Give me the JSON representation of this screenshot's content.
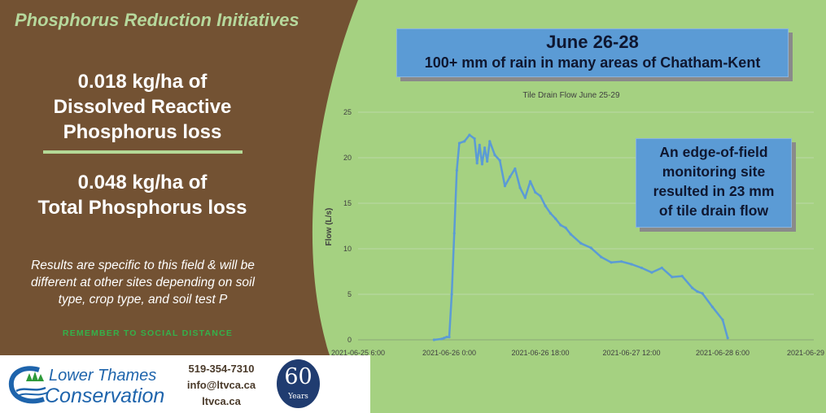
{
  "left_panel": {
    "title": "Phosphorus Reduction Initiatives",
    "stat_1": [
      "0.018 kg/ha of",
      "Dissolved Reactive",
      "Phosphorus loss"
    ],
    "stat_2": [
      "0.048 kg/ha of",
      "Total Phosphorus loss"
    ],
    "note": [
      "Results are specific to this field & will be",
      "different at other sites depending on soil",
      "type, crop type, and soil test P"
    ],
    "remember": "REMEMBER TO SOCIAL DISTANCE"
  },
  "footer": {
    "logo_top": "Lower Thames",
    "logo_bottom": "Conservation",
    "phone": "519-354-7310",
    "email": "info@ltvca.ca",
    "website": "ltvca.ca",
    "badge_number": "60",
    "badge_word": "Years"
  },
  "callout_top": {
    "title": "June 26-28",
    "subtitle": "100+ mm of rain in many areas of Chatham-Kent"
  },
  "callout_side": {
    "lines": [
      "An edge-of-field",
      "monitoring site",
      "resulted in 23 mm",
      "of tile drain flow"
    ]
  },
  "colors": {
    "left_panel": "#735233",
    "background": "#a5d181",
    "footer": "#ffffff",
    "callout": "#5b9bd5",
    "series": "#5b9bd5",
    "logo": "#1e64ac",
    "remember": "#34b14a"
  },
  "chart_data": {
    "type": "line",
    "title": "Tile Drain Flow June 25-29",
    "xlabel": "",
    "ylabel": "Flow (L/s)",
    "ylim": [
      0,
      25
    ],
    "yticks": [
      0,
      5,
      10,
      15,
      20,
      25
    ],
    "xlim": [
      "2021-06-25 6:00",
      "2021-06-29 0:00"
    ],
    "xticks": [
      "2021-06-25 6:00",
      "2021-06-26 0:00",
      "2021-06-26 18:00",
      "2021-06-27 12:00",
      "2021-06-28 6:00",
      "2021-06-29 0:00"
    ],
    "grid": "horizontal",
    "series": [
      {
        "x": [
          "2021-06-25 21:00",
          "2021-06-25 22:30",
          "2021-06-25 23:00",
          "2021-06-25 23:30",
          "2021-06-26 0:00",
          "2021-06-26 0:30",
          "2021-06-26 1:00",
          "2021-06-26 1:30",
          "2021-06-26 2:00",
          "2021-06-26 3:00",
          "2021-06-26 4:00",
          "2021-06-26 5:00",
          "2021-06-26 5:30",
          "2021-06-26 6:00",
          "2021-06-26 6:30",
          "2021-06-26 7:00",
          "2021-06-26 7:30",
          "2021-06-26 8:00",
          "2021-06-26 9:00",
          "2021-06-26 10:00",
          "2021-06-26 11:00",
          "2021-06-26 12:00",
          "2021-06-26 13:00",
          "2021-06-26 14:00",
          "2021-06-26 15:00",
          "2021-06-26 16:00",
          "2021-06-26 17:00",
          "2021-06-26 18:00",
          "2021-06-26 19:00",
          "2021-06-26 20:00",
          "2021-06-26 21:00",
          "2021-06-26 22:00",
          "2021-06-26 23:00",
          "2021-06-27 0:00",
          "2021-06-27 2:00",
          "2021-06-27 4:00",
          "2021-06-27 6:00",
          "2021-06-27 8:00",
          "2021-06-27 10:00",
          "2021-06-27 12:00",
          "2021-06-27 14:00",
          "2021-06-27 16:00",
          "2021-06-27 18:00",
          "2021-06-27 20:00",
          "2021-06-27 22:00",
          "2021-06-28 0:00",
          "2021-06-28 1:00",
          "2021-06-28 2:00",
          "2021-06-28 4:00",
          "2021-06-28 6:00",
          "2021-06-28 7:00"
        ],
        "y": [
          0,
          0.1,
          0.2,
          0.3,
          0.3,
          5,
          11.7,
          18.6,
          21.6,
          21.8,
          22.5,
          22.1,
          19.4,
          21.4,
          19.3,
          21.1,
          19.6,
          21.8,
          20.3,
          19.7,
          16.9,
          17.9,
          18.8,
          16.7,
          15.6,
          17.4,
          16.2,
          15.8,
          14.7,
          13.9,
          13.3,
          12.6,
          12.3,
          11.6,
          10.6,
          10.1,
          9.1,
          8.5,
          8.6,
          8.3,
          7.9,
          7.4,
          7.9,
          6.9,
          7.0,
          5.7,
          5.3,
          5.1,
          3.6,
          2.2,
          0.2
        ]
      }
    ]
  }
}
